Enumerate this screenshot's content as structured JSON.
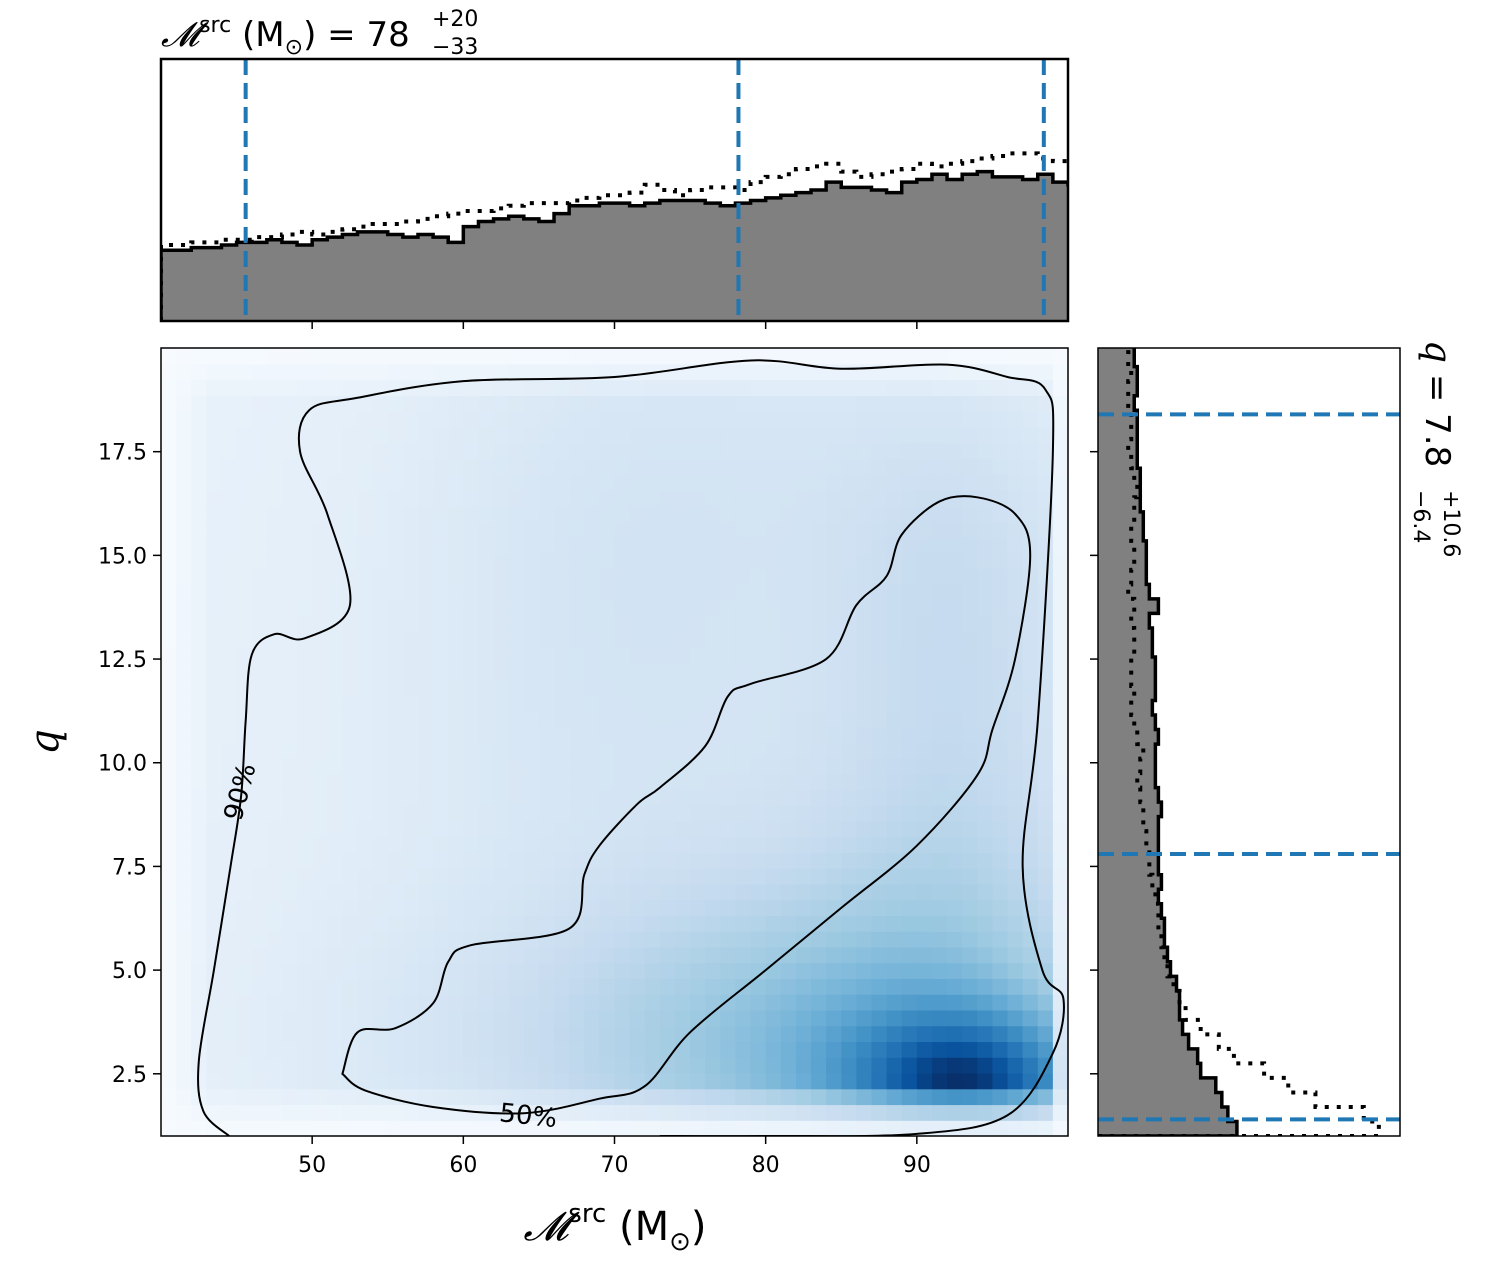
{
  "chart_data": {
    "type": "heatmap",
    "x_axis": {
      "label": "𝓜",
      "label_sup": "src",
      "label_unit": " (M",
      "label_unit_sub": "⊙",
      "label_close": ")",
      "lim": [
        40,
        100
      ],
      "ticks": [
        50,
        60,
        70,
        80,
        90
      ],
      "tick_labels": [
        "50",
        "60",
        "70",
        "80",
        "90"
      ]
    },
    "y_axis": {
      "label": "q",
      "lim": [
        1,
        20
      ],
      "ticks": [
        2.5,
        5.0,
        7.5,
        10.0,
        12.5,
        15.0,
        17.5
      ],
      "tick_labels": [
        "2.5",
        "5.0",
        "7.5",
        "10.0",
        "12.5",
        "15.0",
        "17.5"
      ]
    },
    "colormap": "Blues",
    "density_peak": {
      "x": 94,
      "y": 2.2
    },
    "contours": [
      {
        "label": "90%",
        "label_pos": [
          45.2,
          9.3
        ],
        "points": [
          [
            44.5,
            1
          ],
          [
            42.8,
            1.6
          ],
          [
            42.5,
            2.8
          ],
          [
            43.5,
            5
          ],
          [
            44.6,
            7.5
          ],
          [
            45.3,
            9.2
          ],
          [
            45.6,
            11
          ],
          [
            46,
            12.6
          ],
          [
            47.5,
            13.1
          ],
          [
            49.5,
            13
          ],
          [
            52.5,
            13.8
          ],
          [
            51,
            16
          ],
          [
            49.2,
            17.5
          ],
          [
            49.8,
            18.5
          ],
          [
            53,
            18.8
          ],
          [
            60,
            19.2
          ],
          [
            70,
            19.3
          ],
          [
            79,
            19.7
          ],
          [
            85,
            19.5
          ],
          [
            92,
            19.6
          ],
          [
            96,
            19.3
          ],
          [
            98.5,
            19
          ],
          [
            99,
            17.5
          ],
          [
            98,
            11
          ],
          [
            97,
            7.5
          ],
          [
            98.3,
            5
          ],
          [
            99.7,
            4.3
          ],
          [
            99,
            3
          ],
          [
            96,
            1.5
          ],
          [
            90,
            1.05
          ],
          [
            80,
            1.0
          ],
          [
            73,
            1.0
          ]
        ]
      },
      {
        "label": "50%",
        "label_pos": [
          64.3,
          1.5
        ],
        "points": [
          [
            52,
            2.5
          ],
          [
            53,
            3.5
          ],
          [
            55.5,
            3.6
          ],
          [
            58,
            4.2
          ],
          [
            59,
            5.2
          ],
          [
            60.5,
            5.6
          ],
          [
            67,
            6
          ],
          [
            68,
            7.3
          ],
          [
            69,
            8
          ],
          [
            71.5,
            9
          ],
          [
            73,
            9.4
          ],
          [
            76,
            10.4
          ],
          [
            77.5,
            11.6
          ],
          [
            79,
            11.9
          ],
          [
            84,
            12.5
          ],
          [
            86,
            13.8
          ],
          [
            88,
            14.5
          ],
          [
            89,
            15.5
          ],
          [
            91.5,
            16.3
          ],
          [
            94,
            16.4
          ],
          [
            96.5,
            16
          ],
          [
            97.5,
            15
          ],
          [
            96.5,
            12.5
          ],
          [
            95,
            10.8
          ],
          [
            94,
            9.7
          ],
          [
            90,
            8
          ],
          [
            85,
            6.5
          ],
          [
            80,
            5
          ],
          [
            75,
            3.5
          ],
          [
            72,
            2.2
          ],
          [
            69,
            1.9
          ],
          [
            64,
            1.55
          ],
          [
            58,
            1.7
          ],
          [
            53.5,
            2.1
          ],
          [
            52,
            2.5
          ]
        ]
      }
    ],
    "marginal_x": {
      "title": {
        "symbol": "𝓜",
        "sup": "src",
        "unit_open": " (M",
        "unit_sub": "⊙",
        "unit_close": ") = 78",
        "err_plus": "+20",
        "err_minus": "−33"
      },
      "bin_edges_start": 40,
      "bin_width": 1,
      "solid": [
        0.27,
        0.27,
        0.28,
        0.28,
        0.29,
        0.3,
        0.3,
        0.31,
        0.3,
        0.29,
        0.31,
        0.32,
        0.33,
        0.34,
        0.34,
        0.33,
        0.32,
        0.33,
        0.32,
        0.3,
        0.36,
        0.38,
        0.39,
        0.4,
        0.39,
        0.38,
        0.41,
        0.44,
        0.44,
        0.45,
        0.45,
        0.44,
        0.45,
        0.46,
        0.46,
        0.46,
        0.45,
        0.44,
        0.45,
        0.46,
        0.47,
        0.48,
        0.49,
        0.5,
        0.53,
        0.51,
        0.51,
        0.5,
        0.49,
        0.53,
        0.54,
        0.56,
        0.54,
        0.56,
        0.57,
        0.55,
        0.55,
        0.54,
        0.56,
        0.53,
        0.52,
        0.56,
        0.57,
        0.58,
        0.59,
        0.58,
        0.57,
        0.59,
        0.65,
        0.64,
        0.62,
        0.63,
        0.65,
        0.64,
        0.63,
        0.62,
        0.64,
        0.66,
        0.65,
        0.64,
        0.68,
        0.7,
        0.71,
        0.71,
        0.7,
        0.71,
        0.7,
        0.69,
        0.72,
        0.74,
        0.76,
        0.77,
        0.74,
        0.73,
        0.72,
        0.73,
        0.76,
        0.75,
        0.72,
        0.74,
        0.79
      ],
      "dotted": [
        0.29,
        0.29,
        0.3,
        0.3,
        0.31,
        0.31,
        0.32,
        0.32,
        0.33,
        0.34,
        0.33,
        0.34,
        0.35,
        0.36,
        0.37,
        0.37,
        0.38,
        0.39,
        0.4,
        0.41,
        0.42,
        0.42,
        0.43,
        0.44,
        0.45,
        0.45,
        0.45,
        0.46,
        0.47,
        0.48,
        0.48,
        0.49,
        0.52,
        0.5,
        0.48,
        0.5,
        0.51,
        0.51,
        0.5,
        0.53,
        0.55,
        0.56,
        0.58,
        0.59,
        0.6,
        0.57,
        0.55,
        0.56,
        0.57,
        0.58,
        0.6,
        0.59,
        0.6,
        0.61,
        0.62,
        0.63,
        0.64,
        0.64,
        0.62,
        0.61,
        0.62,
        0.63,
        0.64,
        0.65,
        0.66,
        0.65,
        0.66,
        0.67,
        0.69,
        0.68,
        0.68,
        0.67,
        0.67,
        0.68,
        0.68,
        0.69,
        0.7,
        0.7,
        0.69,
        0.7,
        0.71,
        0.72,
        0.71,
        0.7,
        0.68,
        0.64,
        0.62,
        0.6,
        0.59,
        0.6,
        0.66,
        0.68,
        0.69,
        0.7,
        0.72,
        0.73,
        0.72,
        0.73,
        0.74,
        0.75,
        0.76
      ],
      "lines": [
        45.6,
        78.2,
        98.4
      ]
    },
    "marginal_y": {
      "title": {
        "symbol": "q",
        "value": " = 7.8",
        "err_plus": "+10.6",
        "err_minus": "−6.4"
      },
      "bin_edges_start": 1,
      "bin_width": 0.35,
      "solid": [
        0.46,
        0.43,
        0.41,
        0.39,
        0.34,
        0.33,
        0.3,
        0.28,
        0.27,
        0.27,
        0.26,
        0.24,
        0.23,
        0.22,
        0.22,
        0.21,
        0.2,
        0.21,
        0.2,
        0.2,
        0.2,
        0.2,
        0.21,
        0.2,
        0.19,
        0.19,
        0.19,
        0.2,
        0.19,
        0.18,
        0.19,
        0.19,
        0.19,
        0.18,
        0.18,
        0.17,
        0.2,
        0.17,
        0.16,
        0.16,
        0.16,
        0.15,
        0.15,
        0.14,
        0.14,
        0.14,
        0.13,
        0.13,
        0.13,
        0.13,
        0.12,
        0.13,
        0.13,
        0.12,
        0.12,
        0.12,
        0.12
      ],
      "dotted": [
        0.93,
        0.88,
        0.72,
        0.63,
        0.55,
        0.45,
        0.4,
        0.34,
        0.29,
        0.27,
        0.25,
        0.23,
        0.22,
        0.21,
        0.2,
        0.2,
        0.19,
        0.18,
        0.17,
        0.17,
        0.16,
        0.15,
        0.15,
        0.14,
        0.13,
        0.14,
        0.15,
        0.13,
        0.12,
        0.11,
        0.12,
        0.11,
        0.11,
        0.12,
        0.12,
        0.11,
        0.12,
        0.1,
        0.11,
        0.12,
        0.12,
        0.11,
        0.12,
        0.12,
        0.13,
        0.12,
        0.11,
        0.1,
        0.11,
        0.11,
        0.1,
        0.1,
        0.11,
        0.1,
        0.11,
        0.11,
        0.11
      ],
      "lines": [
        1.4,
        7.8,
        18.4
      ]
    }
  },
  "colors": {
    "hist_fill": "#808080",
    "quantile_line": "#1f77b4",
    "contour": "#000000",
    "cmap_low": "#f7fbff",
    "cmap_mid": "#6baed6",
    "cmap_high": "#08306b"
  }
}
